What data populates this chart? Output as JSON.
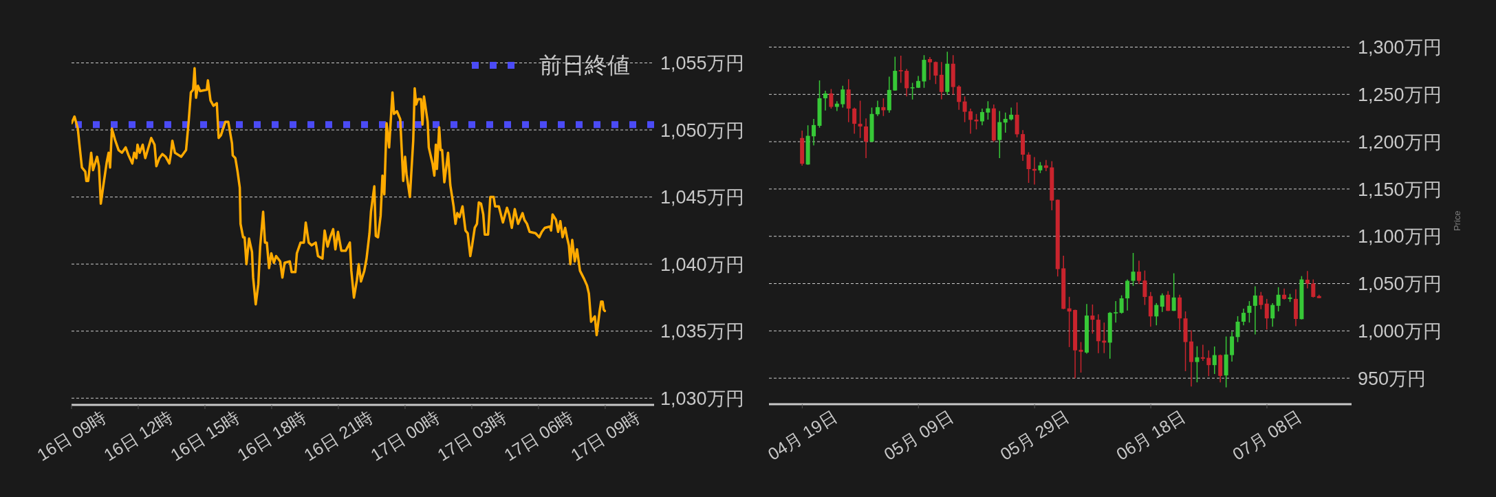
{
  "chart_data": [
    {
      "type": "line",
      "color": "#ffaa00",
      "x": [
        "--07-16T09:00",
        "--07-16T09:08",
        "--07-16T09:17",
        "--07-16T09:21",
        "--07-16T09:28",
        "--07-16T09:37",
        "--07-16T09:40",
        "--07-16T09:45",
        "--07-16T09:53",
        "--07-16T09:58",
        "--07-16T10:09",
        "--07-16T10:14",
        "--07-16T10:19",
        "--07-16T10:25",
        "--07-16T10:35",
        "--07-16T10:40",
        "--07-16T10:44",
        "--07-16T10:49",
        "--07-16T10:57",
        "--07-16T11:07",
        "--07-16T11:16",
        "--07-16T11:26",
        "--07-16T11:34",
        "--07-16T11:44",
        "--07-16T11:49",
        "--07-16T11:55",
        "--07-16T11:58",
        "--07-16T12:04",
        "--07-16T12:12",
        "--07-16T12:19",
        "--07-16T12:35",
        "--07-16T12:44",
        "--07-16T12:49",
        "--07-16T12:57",
        "--07-16T13:05",
        "--07-16T13:14",
        "--07-16T13:24",
        "--07-16T13:28",
        "--07-16T13:32",
        "--07-16T13:39",
        "--07-16T13:56",
        "--07-16T14:09",
        "--07-16T14:16",
        "--07-16T14:22",
        "--07-16T14:28",
        "--07-16T14:32",
        "--07-16T14:36",
        "--07-16T14:41",
        "--07-16T14:47",
        "--07-16T15:05",
        "--07-16T15:08",
        "--07-16T15:15",
        "--07-16T15:23",
        "--07-16T15:32",
        "--07-16T15:37",
        "--07-16T15:43",
        "--07-16T15:55",
        "--07-16T16:03",
        "--07-16T16:13",
        "--07-16T16:15",
        "--07-16T16:22",
        "--07-16T16:28",
        "--07-16T16:34",
        "--07-16T16:36",
        "--07-16T16:43",
        "--07-16T16:47",
        "--07-16T16:52",
        "--07-16T16:59",
        "--07-16T17:07",
        "--07-16T17:10",
        "--07-16T17:17",
        "--07-16T17:24",
        "--07-16T17:29",
        "--07-16T17:37",
        "--07-16T17:42",
        "--07-16T17:47",
        "--07-16T17:53",
        "--07-16T17:59",
        "--07-16T18:06",
        "--07-16T18:12",
        "--07-16T18:23",
        "--07-16T18:29",
        "--07-16T18:35",
        "--07-16T18:49",
        "--07-16T18:54",
        "--07-16T19:04",
        "--07-16T19:08",
        "--07-16T19:18",
        "--07-16T19:27",
        "--07-16T19:32",
        "--07-16T19:40",
        "--07-16T19:48",
        "--07-16T19:59",
        "--07-16T20:05",
        "--07-16T20:17",
        "--07-16T20:23",
        "--07-16T20:31",
        "--07-16T20:38",
        "--07-16T20:46",
        "--07-16T20:52",
        "--07-16T20:59",
        "--07-16T21:08",
        "--07-16T21:20",
        "--07-16T21:31",
        "--07-16T21:35",
        "--07-16T21:42",
        "--07-16T21:50",
        "--07-16T21:55",
        "--07-16T22:01",
        "--07-16T22:10",
        "--07-16T22:16",
        "--07-16T22:24",
        "--07-16T22:28",
        "--07-16T22:37",
        "--07-16T22:41",
        "--07-16T22:47",
        "--07-16T22:54",
        "--07-16T22:59",
        "--07-16T23:04",
        "--07-16T23:10",
        "--07-16T23:17",
        "--07-16T23:26",
        "--07-16T23:30",
        "--07-16T23:38",
        "--07-16T23:47",
        "--07-16T23:55",
        "--07-17T00:00",
        "--07-17T00:04",
        "--07-17T00:13",
        "--07-17T00:22",
        "--07-17T00:26",
        "--07-17T00:30",
        "--07-17T00:35",
        "--07-17T00:43",
        "--07-17T00:47",
        "--07-17T00:51",
        "--07-17T01:01",
        "--07-17T01:04",
        "--07-17T01:14",
        "--07-17T01:19",
        "--07-17T01:23",
        "--07-17T01:26",
        "--07-17T01:32",
        "--07-17T01:36",
        "--07-17T01:40",
        "--07-17T01:46",
        "--07-17T01:56",
        "--07-17T02:02",
        "--07-17T02:11",
        "--07-17T02:16",
        "--07-17T02:21",
        "--07-17T02:27",
        "--07-17T02:35",
        "--07-17T02:43",
        "--07-17T02:49",
        "--07-17T02:56",
        "--07-17T03:01",
        "--07-17T03:08",
        "--07-17T03:14",
        "--07-17T03:19",
        "--07-17T03:25",
        "--07-17T03:31",
        "--07-17T03:35",
        "--07-17T03:44",
        "--07-17T03:50",
        "--07-17T03:59",
        "--07-17T04:03",
        "--07-17T04:13",
        "--07-17T04:24",
        "--07-17T04:35",
        "--07-17T04:41",
        "--07-17T04:48",
        "--07-17T04:56",
        "--07-17T05:05",
        "--07-17T05:17",
        "--07-17T05:22",
        "--07-17T05:29",
        "--07-17T05:36",
        "--07-17T05:52",
        "--07-17T06:02",
        "--07-17T06:09",
        "--07-17T06:17",
        "--07-17T06:31",
        "--07-17T06:34",
        "--07-17T06:38",
        "--07-17T06:47",
        "--07-17T06:53",
        "--07-17T06:59",
        "--07-17T07:05",
        "--07-17T07:12",
        "--07-17T07:17",
        "--07-17T07:22",
        "--07-17T07:26",
        "--07-17T07:31",
        "--07-17T07:38",
        "--07-17T07:44",
        "--07-17T07:52",
        "--07-17T08:03",
        "--07-17T08:11",
        "--07-17T08:16",
        "--07-17T08:22",
        "--07-17T08:32",
        "--07-17T08:37",
        "--07-17T08:45",
        "--07-17T08:49",
        "--07-17T08:53",
        "--07-17T08:56",
        "--07-17T08:59"
      ],
      "values": [
        1050.5,
        1051.0,
        1050.1,
        1049.0,
        1047.2,
        1046.9,
        1046.2,
        1046.2,
        1048.3,
        1047.0,
        1048.0,
        1047.3,
        1044.5,
        1045.7,
        1047.6,
        1048.3,
        1047.2,
        1050.1,
        1049.3,
        1048.5,
        1048.3,
        1048.7,
        1048.1,
        1047.5,
        1048.3,
        1047.9,
        1048.9,
        1048.3,
        1048.9,
        1047.9,
        1049.4,
        1048.9,
        1047.3,
        1047.9,
        1048.2,
        1048.0,
        1047.5,
        1048.2,
        1049.2,
        1048.3,
        1048.0,
        1048.5,
        1050.6,
        1052.8,
        1053.0,
        1054.6,
        1052.4,
        1053.3,
        1052.9,
        1053.0,
        1053.7,
        1052.2,
        1051.8,
        1052.0,
        1049.4,
        1049.6,
        1050.6,
        1050.6,
        1049.0,
        1048.1,
        1047.9,
        1046.9,
        1045.7,
        1043.0,
        1042.0,
        1042.0,
        1040.0,
        1041.9,
        1040.9,
        1039.0,
        1037.0,
        1038.5,
        1041.3,
        1043.9,
        1041.6,
        1041.6,
        1039.7,
        1040.8,
        1040.1,
        1040.6,
        1040.2,
        1039.0,
        1040.1,
        1040.2,
        1039.4,
        1039.4,
        1040.8,
        1041.6,
        1041.6,
        1043.1,
        1041.6,
        1041.4,
        1041.6,
        1040.6,
        1040.4,
        1042.5,
        1041.3,
        1042.0,
        1042.6,
        1041.1,
        1042.4,
        1041.0,
        1041.0,
        1041.6,
        1039.5,
        1037.5,
        1038.8,
        1040.0,
        1038.7,
        1039.5,
        1040.4,
        1042.3,
        1043.9,
        1045.8,
        1042.1,
        1042.0,
        1043.6,
        1046.6,
        1045.2,
        1050.5,
        1048.7,
        1052.8,
        1051.2,
        1051.4,
        1050.8,
        1046.2,
        1048.0,
        1046.7,
        1045.0,
        1049.2,
        1053.1,
        1051.9,
        1052.3,
        1052.3,
        1050.4,
        1052.5,
        1050.6,
        1048.7,
        1047.5,
        1046.6,
        1048.9,
        1047.1,
        1050.2,
        1048.5,
        1048.5,
        1046.1,
        1048.3,
        1045.9,
        1044.3,
        1043.0,
        1043.8,
        1043.5,
        1044.3,
        1042.5,
        1042.3,
        1040.6,
        1041.4,
        1042.7,
        1043.0,
        1044.6,
        1044.5,
        1043.7,
        1042.2,
        1042.2,
        1045.0,
        1045.0,
        1044.3,
        1044.3,
        1043.1,
        1044.2,
        1043.7,
        1042.7,
        1044.1,
        1043.0,
        1043.8,
        1043.3,
        1043.0,
        1042.4,
        1042.3,
        1042.0,
        1042.4,
        1042.7,
        1042.8,
        1042.5,
        1043.7,
        1043.3,
        1042.4,
        1043.2,
        1042.0,
        1042.7,
        1042.0,
        1041.4,
        1040.0,
        1041.8,
        1040.2,
        1041.1,
        1039.5,
        1038.9,
        1038.4,
        1037.8,
        1035.7,
        1036.1,
        1034.7,
        1036.5,
        1037.2,
        1037.2,
        1036.6,
        1036.5
      ],
      "xlim": [
        "--07-16T09:00",
        "--07-17T11:12"
      ],
      "xticks": [
        {
          "value": "--07-16T09:00",
          "label": "16日 09時"
        },
        {
          "value": "--07-16T12:00",
          "label": "16日 12時"
        },
        {
          "value": "--07-16T15:00",
          "label": "16日 15時"
        },
        {
          "value": "--07-16T18:00",
          "label": "16日 18時"
        },
        {
          "value": "--07-16T21:00",
          "label": "16日 21時"
        },
        {
          "value": "--07-17T00:00",
          "label": "17日 00時"
        },
        {
          "value": "--07-17T03:00",
          "label": "17日 03時"
        },
        {
          "value": "--07-17T06:00",
          "label": "17日 06時"
        },
        {
          "value": "--07-17T09:00",
          "label": "17日 09時"
        }
      ],
      "ylim": [
        1029.5,
        1055
      ],
      "yticks": [
        {
          "value": 1030,
          "label": "1,030万円"
        },
        {
          "value": 1035,
          "label": "1,035万円"
        },
        {
          "value": 1040,
          "label": "1,040万円"
        },
        {
          "value": 1045,
          "label": "1,045万円"
        },
        {
          "value": 1050,
          "label": "1,050万円"
        },
        {
          "value": 1055,
          "label": "1,055万円"
        }
      ],
      "grid": "y",
      "legend": "top right",
      "ref_lines": [
        {
          "axis": "y",
          "value": 1050.4,
          "label": "前日終値",
          "color": "#4b4bf6",
          "line_style": "dotted"
        }
      ]
    },
    {
      "type": "candlestick",
      "ylabel": "Price",
      "x": [
        "--04-19",
        "--04-20",
        "--04-21",
        "--04-22",
        "--04-23",
        "--04-24",
        "--04-25",
        "--04-26",
        "--04-27",
        "--04-28",
        "--04-29",
        "--04-30",
        "--05-01",
        "--05-02",
        "--05-03",
        "--05-04",
        "--05-05",
        "--05-06",
        "--05-07",
        "--05-08",
        "--05-09",
        "--05-10",
        "--05-11",
        "--05-12",
        "--05-13",
        "--05-14",
        "--05-15",
        "--05-16",
        "--05-17",
        "--05-18",
        "--05-19",
        "--05-20",
        "--05-21",
        "--05-22",
        "--05-23",
        "--05-24",
        "--05-25",
        "--05-26",
        "--05-27",
        "--05-28",
        "--05-29",
        "--05-30",
        "--05-31",
        "--06-01",
        "--06-02",
        "--06-03",
        "--06-04",
        "--06-05",
        "--06-06",
        "--06-07",
        "--06-08",
        "--06-09",
        "--06-10",
        "--06-11",
        "--06-12",
        "--06-13",
        "--06-14",
        "--06-15",
        "--06-16",
        "--06-17",
        "--06-18",
        "--06-19",
        "--06-20",
        "--06-21",
        "--06-22",
        "--06-23",
        "--06-24",
        "--06-25",
        "--06-26",
        "--06-27",
        "--06-28",
        "--06-29",
        "--06-30",
        "--07-01",
        "--07-02",
        "--07-03",
        "--07-04",
        "--07-05",
        "--07-06",
        "--07-07",
        "--07-08",
        "--07-09",
        "--07-10",
        "--07-11",
        "--07-12",
        "--07-13",
        "--07-14",
        "--07-15",
        "--07-16",
        "--07-17"
      ],
      "ohlc": [
        [
          1203.9,
          1211.7,
          1174.6,
          1176.7
        ],
        [
          1175.9,
          1217.4,
          1175.5,
          1206.2
        ],
        [
          1205.7,
          1224.1,
          1196.1,
          1217.6
        ],
        [
          1216.8,
          1264.8,
          1214.8,
          1245.9
        ],
        [
          1245.9,
          1253.9,
          1232.9,
          1251.0
        ],
        [
          1251.0,
          1255.7,
          1235.0,
          1236.8
        ],
        [
          1236.8,
          1242.7,
          1232.4,
          1240.2
        ],
        [
          1239.6,
          1259.1,
          1236.0,
          1255.2
        ],
        [
          1255.2,
          1266.1,
          1220.7,
          1235.0
        ],
        [
          1235.0,
          1236.0,
          1208.5,
          1218.9
        ],
        [
          1218.9,
          1243.3,
          1203.9,
          1216.1
        ],
        [
          1216.1,
          1224.6,
          1182.6,
          1200.0
        ],
        [
          1200.0,
          1236.0,
          1199.5,
          1229.3
        ],
        [
          1229.0,
          1243.3,
          1227.2,
          1236.5
        ],
        [
          1236.5,
          1245.9,
          1227.2,
          1233.2
        ],
        [
          1233.2,
          1268.7,
          1230.6,
          1254.7
        ],
        [
          1254.1,
          1289.9,
          1253.9,
          1274.9
        ],
        [
          1275.6,
          1290.9,
          1262.2,
          1274.4
        ],
        [
          1274.9,
          1276.9,
          1247.9,
          1256.5
        ],
        [
          1256.5,
          1262.2,
          1244.6,
          1257.5
        ],
        [
          1257.0,
          1269.4,
          1256.8,
          1264.2
        ],
        [
          1263.7,
          1291.5,
          1257.0,
          1286.5
        ],
        [
          1287.3,
          1289.4,
          1265.3,
          1283.9
        ],
        [
          1284.2,
          1284.7,
          1260.9,
          1269.9
        ],
        [
          1270.7,
          1284.2,
          1244.8,
          1252.6
        ],
        [
          1252.6,
          1295.1,
          1249.7,
          1282.4
        ],
        [
          1282.4,
          1291.5,
          1249.7,
          1257.8
        ],
        [
          1258.3,
          1259.6,
          1233.7,
          1242.0
        ],
        [
          1242.5,
          1247.9,
          1220.7,
          1231.6
        ],
        [
          1232.1,
          1235.0,
          1208.5,
          1223.1
        ],
        [
          1223.3,
          1229.3,
          1213.0,
          1221.5
        ],
        [
          1221.5,
          1235.0,
          1217.4,
          1231.3
        ],
        [
          1230.8,
          1242.7,
          1223.3,
          1235.2
        ],
        [
          1235.2,
          1239.4,
          1199.7,
          1201.3
        ],
        [
          1201.8,
          1232.4,
          1182.6,
          1220.7
        ],
        [
          1220.2,
          1230.8,
          1209.6,
          1224.1
        ],
        [
          1223.6,
          1236.0,
          1222.5,
          1228.5
        ],
        [
          1228.5,
          1241.5,
          1204.7,
          1207.8
        ],
        [
          1208.0,
          1212.2,
          1179.8,
          1186.3
        ],
        [
          1186.3,
          1188.9,
          1156.5,
          1171.0
        ],
        [
          1171.2,
          1183.7,
          1154.7,
          1169.4
        ],
        [
          1169.7,
          1178.5,
          1166.8,
          1174.9
        ],
        [
          1174.9,
          1180.6,
          1168.9,
          1172.3
        ],
        [
          1172.8,
          1179.3,
          1127.5,
          1137.8
        ],
        [
          1138.6,
          1138.8,
          1057.5,
          1065.3
        ],
        [
          1066.1,
          1079.5,
          1023.0,
          1023.3
        ],
        [
          1023.8,
          1036.0,
          982.9,
          1020.5
        ],
        [
          1022.1,
          1022.4,
          950.0,
          979.4
        ],
        [
          980.0,
          988.2,
          955.9,
          977.9
        ],
        [
          977.1,
          1028.5,
          975.9,
          1016.2
        ],
        [
          1016.2,
          1027.9,
          997.1,
          1011.8
        ],
        [
          1011.8,
          1017.6,
          976.5,
          989.1
        ],
        [
          989.7,
          1008.8,
          976.5,
          987.6
        ],
        [
          987.6,
          1020.0,
          970.6,
          1019.1
        ],
        [
          1018.5,
          1031.5,
          1008.8,
          1019.7
        ],
        [
          1019.1,
          1037.6,
          1018.2,
          1034.4
        ],
        [
          1034.4,
          1054.4,
          1021.5,
          1052.9
        ],
        [
          1052.9,
          1082.4,
          1047.6,
          1062.6
        ],
        [
          1062.6,
          1074.1,
          1049.4,
          1052.9
        ],
        [
          1053.2,
          1063.8,
          1027.4,
          1035.9
        ],
        [
          1036.8,
          1041.2,
          1004.4,
          1015.3
        ],
        [
          1015.3,
          1029.4,
          1005.9,
          1027.4
        ],
        [
          1025.6,
          1039.7,
          1020.0,
          1037.6
        ],
        [
          1038.2,
          1042.1,
          1021.0,
          1021.2
        ],
        [
          1021.2,
          1060.9,
          1021.0,
          1035.3
        ],
        [
          1035.3,
          1038.2,
          1000.9,
          1013.2
        ],
        [
          1013.2,
          1020.6,
          957.4,
          988.2
        ],
        [
          988.8,
          1000.6,
          941.2,
          967.1
        ],
        [
          967.1,
          983.8,
          945.6,
          972.1
        ],
        [
          972.1,
          985.3,
          968.2,
          970.6
        ],
        [
          971.5,
          979.4,
          952.1,
          963.8
        ],
        [
          963.8,
          983.5,
          954.4,
          974.4
        ],
        [
          974.4,
          975.0,
          945.6,
          952.4
        ],
        [
          952.9,
          994.1,
          940.3,
          975.0
        ],
        [
          974.4,
          999.1,
          967.6,
          994.1
        ],
        [
          993.5,
          1015.6,
          988.2,
          1009.7
        ],
        [
          1009.7,
          1023.5,
          1005.9,
          1019.1
        ],
        [
          1019.1,
          1031.5,
          1008.8,
          1026.5
        ],
        [
          1026.5,
          1047.1,
          996.2,
          1037.4
        ],
        [
          1037.4,
          1041.2,
          1022.9,
          1027.4
        ],
        [
          1028.8,
          1033.8,
          1001.5,
          1013.2
        ],
        [
          1013.2,
          1029.4,
          1004.4,
          1027.4
        ],
        [
          1026.5,
          1046.2,
          1020.6,
          1038.2
        ],
        [
          1038.2,
          1044.7,
          1033.2,
          1033.8
        ],
        [
          1033.8,
          1039.1,
          1030.6,
          1035.3
        ],
        [
          1033.8,
          1044.1,
          1005.0,
          1012.6
        ],
        [
          1012.4,
          1057.9,
          1012.1,
          1054.4
        ],
        [
          1054.1,
          1063.2,
          1045.0,
          1050.0
        ],
        [
          1050.0,
          1054.4,
          1035.3,
          1035.9
        ],
        [
          1036.8,
          1038.2,
          1034.7,
          1034.7
        ]
      ],
      "colors": [
        "#c9242d",
        "#37c837",
        "#37c837",
        "#37c837",
        "#37c837",
        "#c9242d",
        "#37c837",
        "#37c837",
        "#c9242d",
        "#c9242d",
        "#c9242d",
        "#c9242d",
        "#37c837",
        "#37c837",
        "#c9242d",
        "#37c837",
        "#37c837",
        "#c9242d",
        "#c9242d",
        "#37c837",
        "#37c837",
        "#37c837",
        "#c9242d",
        "#c9242d",
        "#c9242d",
        "#37c837",
        "#c9242d",
        "#c9242d",
        "#c9242d",
        "#c9242d",
        "#c9242d",
        "#37c837",
        "#37c837",
        "#c9242d",
        "#37c837",
        "#37c837",
        "#37c837",
        "#c9242d",
        "#c9242d",
        "#c9242d",
        "#c9242d",
        "#37c837",
        "#c9242d",
        "#c9242d",
        "#c9242d",
        "#c9242d",
        "#c9242d",
        "#c9242d",
        "#c9242d",
        "#37c837",
        "#c9242d",
        "#c9242d",
        "#c9242d",
        "#37c837",
        "#37c837",
        "#37c837",
        "#37c837",
        "#37c837",
        "#c9242d",
        "#c9242d",
        "#c9242d",
        "#37c837",
        "#37c837",
        "#c9242d",
        "#37c837",
        "#c9242d",
        "#c9242d",
        "#c9242d",
        "#37c837",
        "#c9242d",
        "#c9242d",
        "#37c837",
        "#c9242d",
        "#37c837",
        "#37c837",
        "#37c837",
        "#37c837",
        "#37c837",
        "#37c837",
        "#c9242d",
        "#c9242d",
        "#37c837",
        "#37c837",
        "#c9242d",
        "#37c837",
        "#c9242d",
        "#37c837",
        "#c9242d",
        "#c9242d",
        "#c9242d"
      ],
      "xlim": [
        "--04-13T06:30",
        "--07-22T13:40"
      ],
      "xticks": [
        {
          "value": "--04-19",
          "label": "04月 19日"
        },
        {
          "value": "--05-09",
          "label": "05月 09日"
        },
        {
          "value": "--05-29",
          "label": "05月 29日"
        },
        {
          "value": "--06-18",
          "label": "06月 18日"
        },
        {
          "value": "--07-08",
          "label": "07月 08日"
        }
      ],
      "ylim": [
        922.5,
        1300
      ],
      "yticks": [
        {
          "value": 950,
          "label": "950万円"
        },
        {
          "value": 1000,
          "label": "1,000万円"
        },
        {
          "value": 1050,
          "label": "1,050万円"
        },
        {
          "value": 1100,
          "label": "1,100万円"
        },
        {
          "value": 1150,
          "label": "1,150万円"
        },
        {
          "value": 1200,
          "label": "1,200万円"
        },
        {
          "value": 1250,
          "label": "1,250万円"
        },
        {
          "value": 1300,
          "label": "1,300万円"
        }
      ],
      "grid": "y"
    }
  ]
}
